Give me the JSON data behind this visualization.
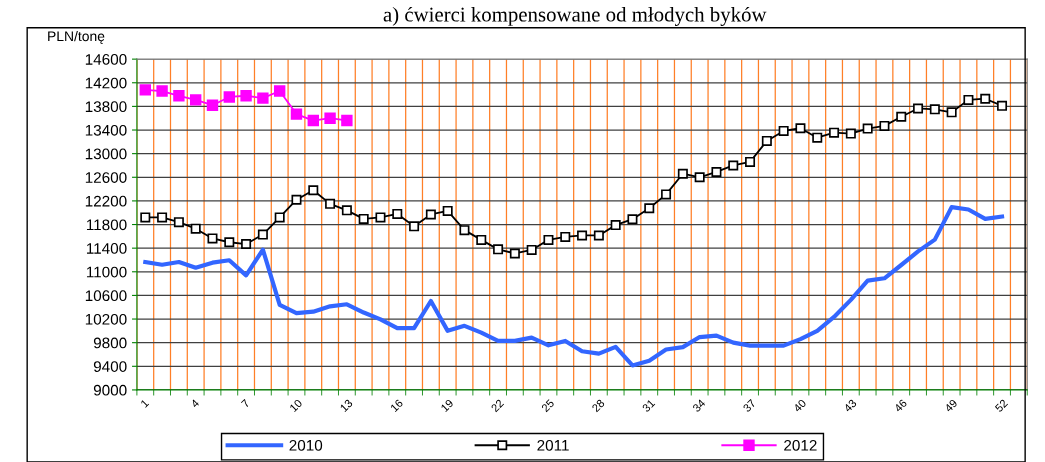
{
  "chart_data": {
    "type": "line",
    "title": "a) ćwierci kompensowane od młodych byków",
    "ylabel": "PLN/tonę",
    "categories": [
      "1",
      null,
      null,
      "4",
      null,
      null,
      "7",
      null,
      null,
      "10",
      null,
      null,
      "13",
      null,
      null,
      "16",
      null,
      null,
      "19",
      null,
      null,
      "22",
      null,
      null,
      "25",
      null,
      null,
      "28",
      null,
      null,
      "31",
      null,
      null,
      "34",
      null,
      null,
      "37",
      null,
      null,
      "40",
      null,
      null,
      "43",
      null,
      null,
      "46",
      null,
      null,
      "49",
      null,
      null,
      "52",
      null
    ],
    "ylim": [
      9000,
      14600
    ],
    "yticks": [
      9000,
      9400,
      9800,
      10200,
      10600,
      11000,
      11400,
      11800,
      12200,
      12600,
      13000,
      13400,
      13800,
      14200,
      14600
    ],
    "grid": true,
    "legend": "bottom",
    "series": [
      {
        "name": "2010",
        "color": "#3366ff",
        "marker": "none",
        "values": [
          11165,
          11120,
          11165,
          11070,
          11155,
          11195,
          10940,
          11375,
          10440,
          10300,
          10325,
          10415,
          10450,
          10310,
          10195,
          10045,
          10045,
          10505,
          10000,
          10085,
          9970,
          9830,
          9830,
          9885,
          9755,
          9830,
          9655,
          9615,
          9730,
          9415,
          9495,
          9685,
          9725,
          9895,
          9920,
          9800,
          9750,
          9750,
          9750,
          9860,
          10000,
          10235,
          10525,
          10850,
          10890,
          11115,
          11345,
          11545,
          12095,
          12055,
          11895,
          11935,
          null
        ]
      },
      {
        "name": "2011",
        "color": "#000000",
        "marker": "square",
        "values": [
          11920,
          11920,
          11840,
          11730,
          11565,
          11500,
          11470,
          11630,
          11920,
          12220,
          12380,
          12150,
          12040,
          11895,
          11920,
          11980,
          11770,
          11970,
          12030,
          11705,
          11540,
          11380,
          11310,
          11370,
          11540,
          11590,
          11615,
          11615,
          11790,
          11890,
          12075,
          12310,
          12660,
          12600,
          12690,
          12800,
          12860,
          13215,
          13385,
          13430,
          13270,
          13355,
          13340,
          13425,
          13470,
          13625,
          13765,
          13750,
          13700,
          13910,
          13930,
          13810,
          null
        ]
      },
      {
        "name": "2012",
        "color": "#ff00ff",
        "marker": "square",
        "values": [
          14080,
          14060,
          13980,
          13910,
          13820,
          13960,
          13980,
          13940,
          14060,
          13670,
          13560,
          13600,
          13560,
          null,
          null,
          null,
          null,
          null,
          null,
          null,
          null,
          null,
          null,
          null,
          null,
          null,
          null,
          null,
          null,
          null,
          null,
          null,
          null,
          null,
          null,
          null,
          null,
          null,
          null,
          null,
          null,
          null,
          null,
          null,
          null,
          null,
          null,
          null,
          null,
          null,
          null,
          null,
          null
        ]
      }
    ]
  }
}
